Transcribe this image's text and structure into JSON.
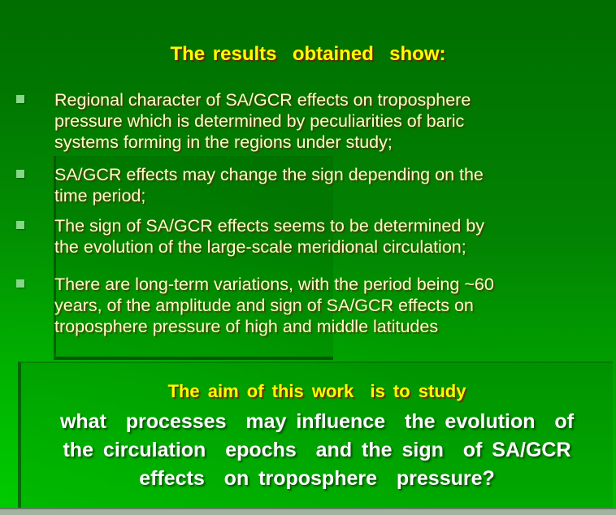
{
  "slide": {
    "title": "The results  obtained  show:",
    "bullets": [
      {
        "lines": [
          "Regional character of SA/GCR effects on troposphere",
          "pressure which is determined by peculiarities of baric",
          "systems forming in the regions under study;"
        ]
      },
      {
        "lines": [
          "SA/GCR effects may change the sign depending on the",
          "time period;"
        ]
      },
      {
        "lines": [
          "The sign of SA/GCR effects seems to be determined by",
          "the evolution of the large-scale meridional circulation;"
        ]
      },
      {
        "lines": [
          "There are long-term variations, with the period being ~60",
          "years, of the amplitude and sign of SA/GCR effects on",
          "troposphere pressure of high and middle latitudes"
        ]
      }
    ],
    "aim": {
      "heading": "The aim of this work  is to study",
      "lines": [
        "what  processes  may influence  the evolution  of",
        "the circulation  epochs  and the sign  of SA/GCR",
        "effects  on troposphere  pressure?"
      ]
    },
    "colors": {
      "background_top": "#006e00",
      "background_bottom": "#00b900",
      "title_yellow": "#ffff00",
      "bullet_text": "#ffffc8",
      "bullet_marker_green": "#85d885",
      "body_white": "#ffffff",
      "box_edge_dark_green": "#064606",
      "bottom_edge_bar": "#a3b3a0"
    }
  }
}
